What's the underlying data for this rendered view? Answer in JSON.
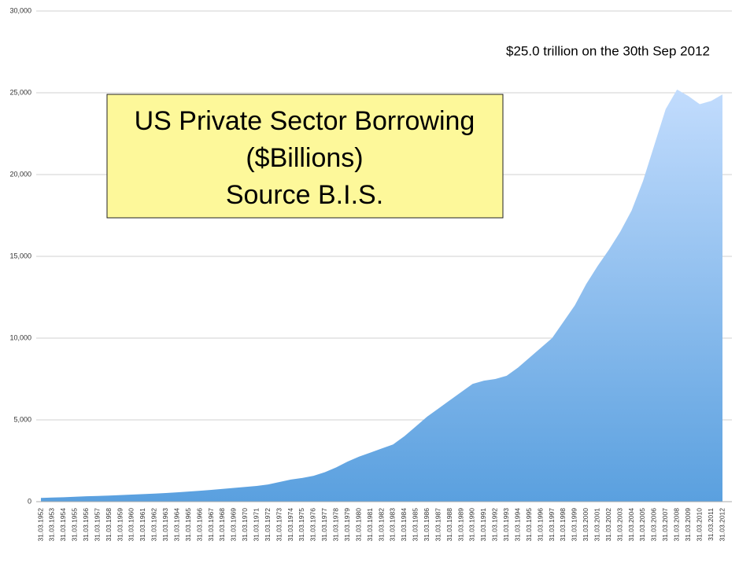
{
  "chart_data": {
    "type": "area",
    "title": [
      "US Private Sector Borrowing",
      "($Billions)",
      "Source B.I.S."
    ],
    "annotation": "$25.0 trillion on the 30th Sep 2012",
    "categories": [
      "31.03.1952",
      "31.03.1953",
      "31.03.1954",
      "31.03.1955",
      "31.03.1956",
      "31.03.1957",
      "31.03.1958",
      "31.03.1959",
      "31.03.1960",
      "31.03.1961",
      "31.03.1962",
      "31.03.1963",
      "31.03.1964",
      "31.03.1965",
      "31.03.1966",
      "31.03.1967",
      "31.03.1968",
      "31.03.1969",
      "31.03.1970",
      "31.03.1971",
      "31.03.1972",
      "31.03.1973",
      "31.03.1974",
      "31.03.1975",
      "31.03.1976",
      "31.03.1977",
      "31.03.1978",
      "31.03.1979",
      "31.03.1980",
      "31.03.1981",
      "31.03.1982",
      "31.03.1983",
      "31.03.1984",
      "31.03.1985",
      "31.03.1986",
      "31.03.1987",
      "31.03.1988",
      "31.03.1989",
      "31.03.1990",
      "31.03.1991",
      "31.03.1992",
      "31.03.1993",
      "31.03.1994",
      "31.03.1995",
      "31.03.1996",
      "31.03.1997",
      "31.03.1998",
      "31.03.1999",
      "31.03.2000",
      "31.03.2001",
      "31.03.2002",
      "31.03.2003",
      "31.03.2004",
      "31.03.2005",
      "31.03.2006",
      "31.03.2007",
      "31.03.2008",
      "31.03.2009",
      "31.03.2010",
      "31.03.2011",
      "31.03.2012"
    ],
    "values": [
      230,
      250,
      270,
      300,
      330,
      350,
      370,
      400,
      430,
      460,
      490,
      530,
      570,
      620,
      670,
      720,
      780,
      840,
      900,
      960,
      1050,
      1200,
      1350,
      1450,
      1580,
      1800,
      2100,
      2450,
      2750,
      3000,
      3250,
      3500,
      4000,
      4600,
      5200,
      5700,
      6200,
      6700,
      7200,
      7400,
      7500,
      7700,
      8200,
      8800,
      9400,
      10000,
      11000,
      12000,
      13300,
      14400,
      15400,
      16500,
      17800,
      19600,
      21800,
      24000,
      25200,
      24800,
      24300,
      24500,
      24900
    ],
    "color": "#5aa0df",
    "ylim": [
      0,
      30000
    ],
    "yticks": [
      0,
      {
        "value": 5000,
        "label": "5,000"
      },
      {
        "value": 10000,
        "label": "10,000"
      },
      {
        "value": 15000,
        "label": "15,000"
      },
      {
        "value": 20000,
        "label": "20,000"
      },
      {
        "value": 25000,
        "label": "25,000"
      },
      {
        "value": 30000,
        "label": "30,000"
      }
    ],
    "grid": true
  }
}
